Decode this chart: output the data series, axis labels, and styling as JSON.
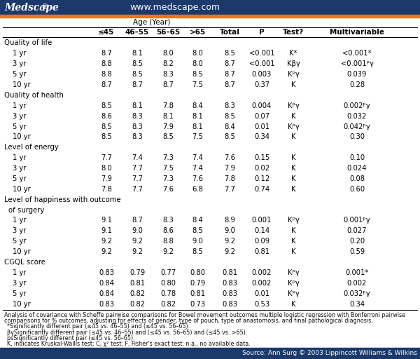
{
  "header_bg": "#1b3a6b",
  "header_text_brand": "Medscape",
  "header_text_reg": "®",
  "header_url": "www.medscape.com",
  "orange_bar": "#e8761a",
  "source_bg": "#1b3a6b",
  "source_text": "Source: Ann Surg © 2003 Lippincott Williams & Wilkins",
  "age_group_header": "Age (Year)",
  "col_headers": [
    "≤45",
    "46–55",
    "56–65",
    ">65",
    "Total",
    "P",
    "Test?",
    "Multivariable"
  ],
  "rows": [
    {
      "label": "Quality of life",
      "section": true,
      "multiline": false,
      "data": []
    },
    {
      "label": "1 yr",
      "section": false,
      "data": [
        "8.7",
        "8.1",
        "8.0",
        "8.0",
        "8.5",
        "<0.001",
        "K*",
        "<0.001*"
      ]
    },
    {
      "label": "3 yr",
      "section": false,
      "data": [
        "8.8",
        "8.5",
        "8.2",
        "8.0",
        "8.7",
        "<0.001",
        "Kβγ",
        "<0.001ᵖγ"
      ]
    },
    {
      "label": "5 yr",
      "section": false,
      "data": [
        "8.8",
        "8.5",
        "8.3",
        "8.5",
        "8.7",
        "0.003",
        "Kᵖγ",
        "0.039"
      ]
    },
    {
      "label": "10 yr",
      "section": false,
      "data": [
        "8.7",
        "8.7",
        "8.7",
        "7.5",
        "8.7",
        "0.37",
        "K",
        "0.28"
      ]
    },
    {
      "label": "Quality of health",
      "section": true,
      "multiline": false,
      "data": []
    },
    {
      "label": "1 yr",
      "section": false,
      "data": [
        "8.5",
        "8.1",
        "7.8",
        "8.4",
        "8.3",
        "0.004",
        "Kᵖγ",
        "0.002ᵖγ"
      ]
    },
    {
      "label": "3 yr",
      "section": false,
      "data": [
        "8.6",
        "8.3",
        "8.1",
        "8.1",
        "8.5",
        "0.07",
        "K",
        "0.032"
      ]
    },
    {
      "label": "5 yr",
      "section": false,
      "data": [
        "8.5",
        "8.3",
        "7.9",
        "8.1",
        "8.4",
        "0.01",
        "Kᵖγ",
        "0.042ᵖγ"
      ]
    },
    {
      "label": "10 yr",
      "section": false,
      "data": [
        "8.5",
        "8.3",
        "8.5",
        "7.5",
        "8.5",
        "0.34",
        "K",
        "0.30"
      ]
    },
    {
      "label": "Level of energy",
      "section": true,
      "multiline": false,
      "data": []
    },
    {
      "label": "1 yr",
      "section": false,
      "data": [
        "7.7",
        "7.4",
        "7.3",
        "7.4",
        "7.6",
        "0.15",
        "K",
        "0.10"
      ]
    },
    {
      "label": "3 yr",
      "section": false,
      "data": [
        "8.0",
        "7.7",
        "7.5",
        "7.4",
        "7.9",
        "0.02",
        "K",
        "0.024"
      ]
    },
    {
      "label": "5 yr",
      "section": false,
      "data": [
        "7.9",
        "7.7",
        "7.3",
        "7.6",
        "7.8",
        "0.12",
        "K",
        "0.08"
      ]
    },
    {
      "label": "10 yr",
      "section": false,
      "data": [
        "7.8",
        "7.7",
        "7.6",
        "6.8",
        "7.7",
        "0.74",
        "K",
        "0.60"
      ]
    },
    {
      "label": "Level of happiness with outcome",
      "section": true,
      "multiline": true,
      "label2": "of surgery",
      "data": []
    },
    {
      "label": "1 yr",
      "section": false,
      "data": [
        "9.1",
        "8.7",
        "8.3",
        "8.4",
        "8.9",
        "0.001",
        "Kᵖγ",
        "0.001ᵖγ"
      ]
    },
    {
      "label": "3 yr",
      "section": false,
      "data": [
        "9.1",
        "9.0",
        "8.6",
        "8.5",
        "9.0",
        "0.14",
        "K",
        "0.027"
      ]
    },
    {
      "label": "5 yr",
      "section": false,
      "data": [
        "9.2",
        "9.2",
        "8.8",
        "9.0",
        "9.2",
        "0.09",
        "K",
        "0.20"
      ]
    },
    {
      "label": "10 yr",
      "section": false,
      "data": [
        "9.2",
        "9.2",
        "9.2",
        "8.5",
        "9.2",
        "0.81",
        "K",
        "0.59"
      ]
    },
    {
      "label": "CGQL score",
      "section": true,
      "multiline": false,
      "data": []
    },
    {
      "label": "1 yr",
      "section": false,
      "data": [
        "0.83",
        "0.79",
        "0.77",
        "0.80",
        "0.81",
        "0.002",
        "Kᵖγ",
        "0.001*"
      ]
    },
    {
      "label": "3 yr",
      "section": false,
      "data": [
        "0.84",
        "0.81",
        "0.80",
        "0.79",
        "0.83",
        "0.002",
        "Kᵖγ",
        "0.002"
      ]
    },
    {
      "label": "5 yr",
      "section": false,
      "data": [
        "0.84",
        "0.82",
        "0.78",
        "0.81",
        "0.83",
        "0.01",
        "Kᵖγ",
        "0.032ᵖγ"
      ]
    },
    {
      "label": "10 yr",
      "section": false,
      "data": [
        "0.83",
        "0.82",
        "0.82",
        "0.73",
        "0.83",
        "0.53",
        "K",
        "0.34"
      ]
    }
  ],
  "footnotes": [
    "Analysis of covariance with Scheffe pairwise comparisons for Bowel movement outcomes multiple logistic regression with Bonferroni pairwise",
    "comparisons for % outcomes, adjusting for effects of gender, type of pouch, type of anastomosis, and final pathological diagnosis.",
    "*Significantly different pair (≤45 vs. 46–55) and (≤45 vs. 56–65).",
    "βγSignificantly different pair (≤45 vs. 46–55) and (≤45 vs. 56–65) and (≤45 vs. >65).",
    "psSignificantly different pair (≤45 vs. 56–65).",
    "K, indicates Kruskal-Wallis test; C, χ² test; F, Fisher's exact test; n.a., no available data."
  ]
}
